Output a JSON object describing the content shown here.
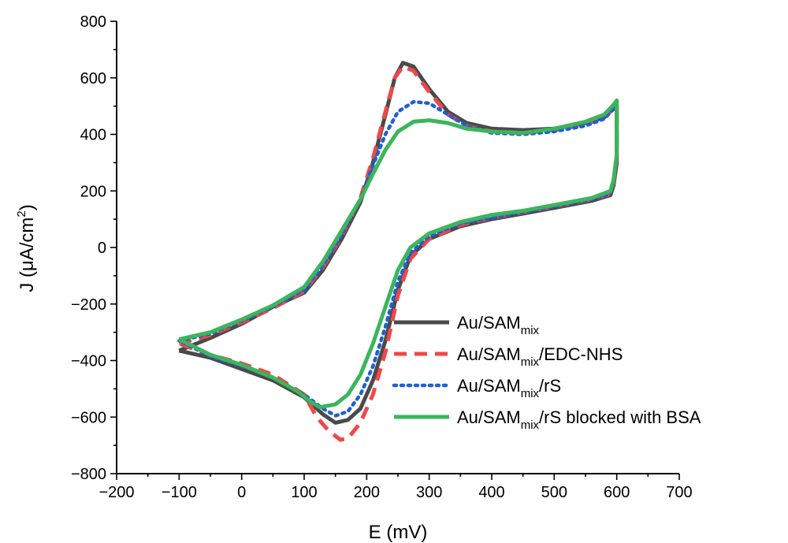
{
  "chart_data": {
    "type": "line",
    "xlabel": "E (mV)",
    "ylabel_main": "J (μA/cm",
    "ylabel_sup": "2",
    "ylabel_close": ")",
    "xlim": [
      -200,
      700
    ],
    "ylim": [
      -800,
      800
    ],
    "xticks": [
      -200,
      -100,
      0,
      100,
      200,
      300,
      400,
      500,
      600,
      700
    ],
    "yticks": [
      -800,
      -600,
      -400,
      -200,
      0,
      200,
      400,
      600,
      800
    ],
    "grid": false,
    "legend_position": "bottom-right",
    "series": [
      {
        "name": "Au/SAM",
        "name_sub": "mix",
        "name_suffix": "",
        "color": "#4a4a4a",
        "style": "solid",
        "points": [
          [
            -100,
            -365
          ],
          [
            -50,
            -320
          ],
          [
            0,
            -270
          ],
          [
            50,
            -210
          ],
          [
            100,
            -160
          ],
          [
            130,
            -80
          ],
          [
            160,
            30
          ],
          [
            190,
            160
          ],
          [
            210,
            300
          ],
          [
            230,
            470
          ],
          [
            245,
            600
          ],
          [
            258,
            653
          ],
          [
            275,
            640
          ],
          [
            300,
            560
          ],
          [
            330,
            480
          ],
          [
            360,
            440
          ],
          [
            400,
            420
          ],
          [
            450,
            415
          ],
          [
            500,
            420
          ],
          [
            550,
            440
          ],
          [
            580,
            460
          ],
          [
            595,
            495
          ],
          [
            600,
            500
          ],
          [
            600,
            300
          ],
          [
            595,
            220
          ],
          [
            590,
            185
          ],
          [
            560,
            165
          ],
          [
            500,
            140
          ],
          [
            450,
            120
          ],
          [
            400,
            100
          ],
          [
            350,
            75
          ],
          [
            300,
            30
          ],
          [
            270,
            -30
          ],
          [
            250,
            -150
          ],
          [
            230,
            -330
          ],
          [
            210,
            -470
          ],
          [
            190,
            -570
          ],
          [
            170,
            -610
          ],
          [
            150,
            -620
          ],
          [
            130,
            -590
          ],
          [
            100,
            -530
          ],
          [
            50,
            -470
          ],
          [
            0,
            -430
          ],
          [
            -50,
            -390
          ],
          [
            -100,
            -365
          ]
        ]
      },
      {
        "name": "Au/SAM",
        "name_sub": "mix",
        "name_suffix": "/EDC-NHS",
        "color": "#f04848",
        "style": "dashed",
        "points": [
          [
            -100,
            -340
          ],
          [
            -50,
            -310
          ],
          [
            0,
            -265
          ],
          [
            50,
            -215
          ],
          [
            100,
            -155
          ],
          [
            130,
            -70
          ],
          [
            160,
            40
          ],
          [
            190,
            175
          ],
          [
            210,
            315
          ],
          [
            230,
            480
          ],
          [
            245,
            600
          ],
          [
            258,
            640
          ],
          [
            275,
            625
          ],
          [
            300,
            550
          ],
          [
            330,
            470
          ],
          [
            360,
            430
          ],
          [
            400,
            410
          ],
          [
            450,
            405
          ],
          [
            500,
            415
          ],
          [
            550,
            435
          ],
          [
            580,
            460
          ],
          [
            595,
            490
          ],
          [
            600,
            495
          ],
          [
            600,
            320
          ],
          [
            595,
            230
          ],
          [
            590,
            190
          ],
          [
            560,
            170
          ],
          [
            500,
            145
          ],
          [
            450,
            125
          ],
          [
            400,
            105
          ],
          [
            350,
            80
          ],
          [
            300,
            30
          ],
          [
            270,
            -40
          ],
          [
            250,
            -170
          ],
          [
            230,
            -370
          ],
          [
            210,
            -520
          ],
          [
            190,
            -620
          ],
          [
            170,
            -675
          ],
          [
            158,
            -680
          ],
          [
            140,
            -650
          ],
          [
            120,
            -600
          ],
          [
            100,
            -520
          ],
          [
            50,
            -450
          ],
          [
            0,
            -410
          ],
          [
            -50,
            -380
          ],
          [
            -100,
            -340
          ]
        ]
      },
      {
        "name": "Au/SAM",
        "name_sub": "mix",
        "name_suffix": "/rS",
        "color": "#1f5fd1",
        "style": "dotted",
        "points": [
          [
            -100,
            -330
          ],
          [
            -50,
            -305
          ],
          [
            0,
            -260
          ],
          [
            50,
            -210
          ],
          [
            100,
            -150
          ],
          [
            130,
            -65
          ],
          [
            160,
            45
          ],
          [
            190,
            170
          ],
          [
            210,
            290
          ],
          [
            230,
            400
          ],
          [
            250,
            480
          ],
          [
            275,
            515
          ],
          [
            300,
            510
          ],
          [
            330,
            470
          ],
          [
            360,
            430
          ],
          [
            400,
            405
          ],
          [
            450,
            400
          ],
          [
            500,
            410
          ],
          [
            550,
            430
          ],
          [
            580,
            455
          ],
          [
            595,
            490
          ],
          [
            600,
            500
          ],
          [
            600,
            320
          ],
          [
            595,
            230
          ],
          [
            590,
            190
          ],
          [
            560,
            170
          ],
          [
            500,
            145
          ],
          [
            450,
            125
          ],
          [
            400,
            105
          ],
          [
            350,
            85
          ],
          [
            300,
            40
          ],
          [
            270,
            -20
          ],
          [
            250,
            -120
          ],
          [
            230,
            -280
          ],
          [
            210,
            -420
          ],
          [
            190,
            -520
          ],
          [
            170,
            -580
          ],
          [
            150,
            -595
          ],
          [
            130,
            -570
          ],
          [
            100,
            -520
          ],
          [
            50,
            -460
          ],
          [
            0,
            -420
          ],
          [
            -50,
            -385
          ],
          [
            -100,
            -330
          ]
        ]
      },
      {
        "name": "Au/SAM",
        "name_sub": "mix",
        "name_suffix": "/rS blocked with BSA",
        "color": "#3cb55c",
        "style": "solid",
        "points": [
          [
            -100,
            -325
          ],
          [
            -50,
            -300
          ],
          [
            0,
            -255
          ],
          [
            50,
            -205
          ],
          [
            100,
            -140
          ],
          [
            130,
            -50
          ],
          [
            160,
            60
          ],
          [
            190,
            170
          ],
          [
            210,
            260
          ],
          [
            230,
            345
          ],
          [
            250,
            410
          ],
          [
            275,
            445
          ],
          [
            300,
            450
          ],
          [
            330,
            440
          ],
          [
            360,
            420
          ],
          [
            400,
            410
          ],
          [
            450,
            405
          ],
          [
            500,
            420
          ],
          [
            550,
            445
          ],
          [
            580,
            470
          ],
          [
            595,
            505
          ],
          [
            600,
            520
          ],
          [
            600,
            330
          ],
          [
            595,
            240
          ],
          [
            590,
            200
          ],
          [
            560,
            175
          ],
          [
            500,
            150
          ],
          [
            450,
            130
          ],
          [
            400,
            115
          ],
          [
            350,
            90
          ],
          [
            300,
            50
          ],
          [
            270,
            0
          ],
          [
            250,
            -80
          ],
          [
            230,
            -210
          ],
          [
            210,
            -340
          ],
          [
            190,
            -450
          ],
          [
            170,
            -520
          ],
          [
            150,
            -555
          ],
          [
            125,
            -565
          ],
          [
            110,
            -545
          ],
          [
            90,
            -510
          ],
          [
            50,
            -460
          ],
          [
            0,
            -415
          ],
          [
            -50,
            -380
          ],
          [
            -100,
            -325
          ]
        ]
      }
    ]
  }
}
